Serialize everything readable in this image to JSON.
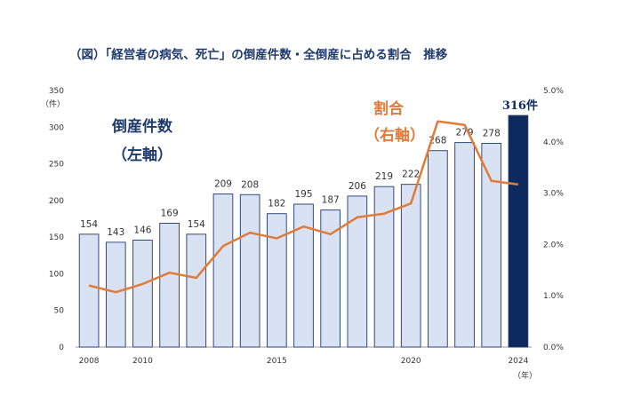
{
  "title": "（図）「経営者の病気、死亡」の倒産件数・全倒産に占める割合　推移",
  "labels": {
    "count_series": "倒産件数",
    "count_axis": "（左軸）",
    "ratio_series": "割合",
    "ratio_axis": "（右軸）",
    "left_unit": "（件）",
    "x_unit": "（年）",
    "highlight_label": "316件"
  },
  "colors": {
    "bar": "#d9e2f3",
    "bar_edge": "#1f3a6d",
    "highlight_bar": "#0d2a5e",
    "line": "#e07b39",
    "text_dark": "#1f3a6d",
    "axis_text": "#333333",
    "grid": "#e6e6e6"
  },
  "chart_data": {
    "type": "bar",
    "title": "（図）「経営者の病気、死亡」の倒産件数・全倒産に占める割合　推移",
    "x": [
      2008,
      2009,
      2010,
      2011,
      2012,
      2013,
      2014,
      2015,
      2016,
      2017,
      2018,
      2019,
      2020,
      2021,
      2022,
      2023,
      2024
    ],
    "x_tick_labels": [
      "2008",
      "2010",
      "2015",
      "2020",
      "2024"
    ],
    "series": [
      {
        "name": "倒産件数",
        "type": "bar",
        "axis": "left",
        "values": [
          154,
          143,
          146,
          169,
          154,
          209,
          208,
          182,
          195,
          187,
          206,
          219,
          222,
          268,
          279,
          278,
          316
        ],
        "data_labels": [
          "154",
          "143",
          "146",
          "169",
          "154",
          "209",
          "208",
          "182",
          "195",
          "187",
          "206",
          "219",
          "222",
          "268",
          "279",
          "278",
          "316件"
        ]
      },
      {
        "name": "割合",
        "type": "line",
        "axis": "right",
        "values": [
          1.2,
          1.07,
          1.23,
          1.45,
          1.35,
          1.97,
          2.23,
          2.12,
          2.35,
          2.2,
          2.53,
          2.6,
          2.8,
          4.4,
          4.33,
          3.24,
          3.17
        ]
      }
    ],
    "y_left": {
      "range": [
        0,
        350
      ],
      "ticks": [
        "0",
        "50",
        "100",
        "150",
        "200",
        "250",
        "300",
        "350"
      ]
    },
    "y_right": {
      "range": [
        0,
        5
      ],
      "ticks": [
        "0.0%",
        "1.0%",
        "2.0%",
        "3.0%",
        "4.0%",
        "5.0%"
      ]
    },
    "highlight": {
      "x": 2024
    },
    "grid": false
  }
}
